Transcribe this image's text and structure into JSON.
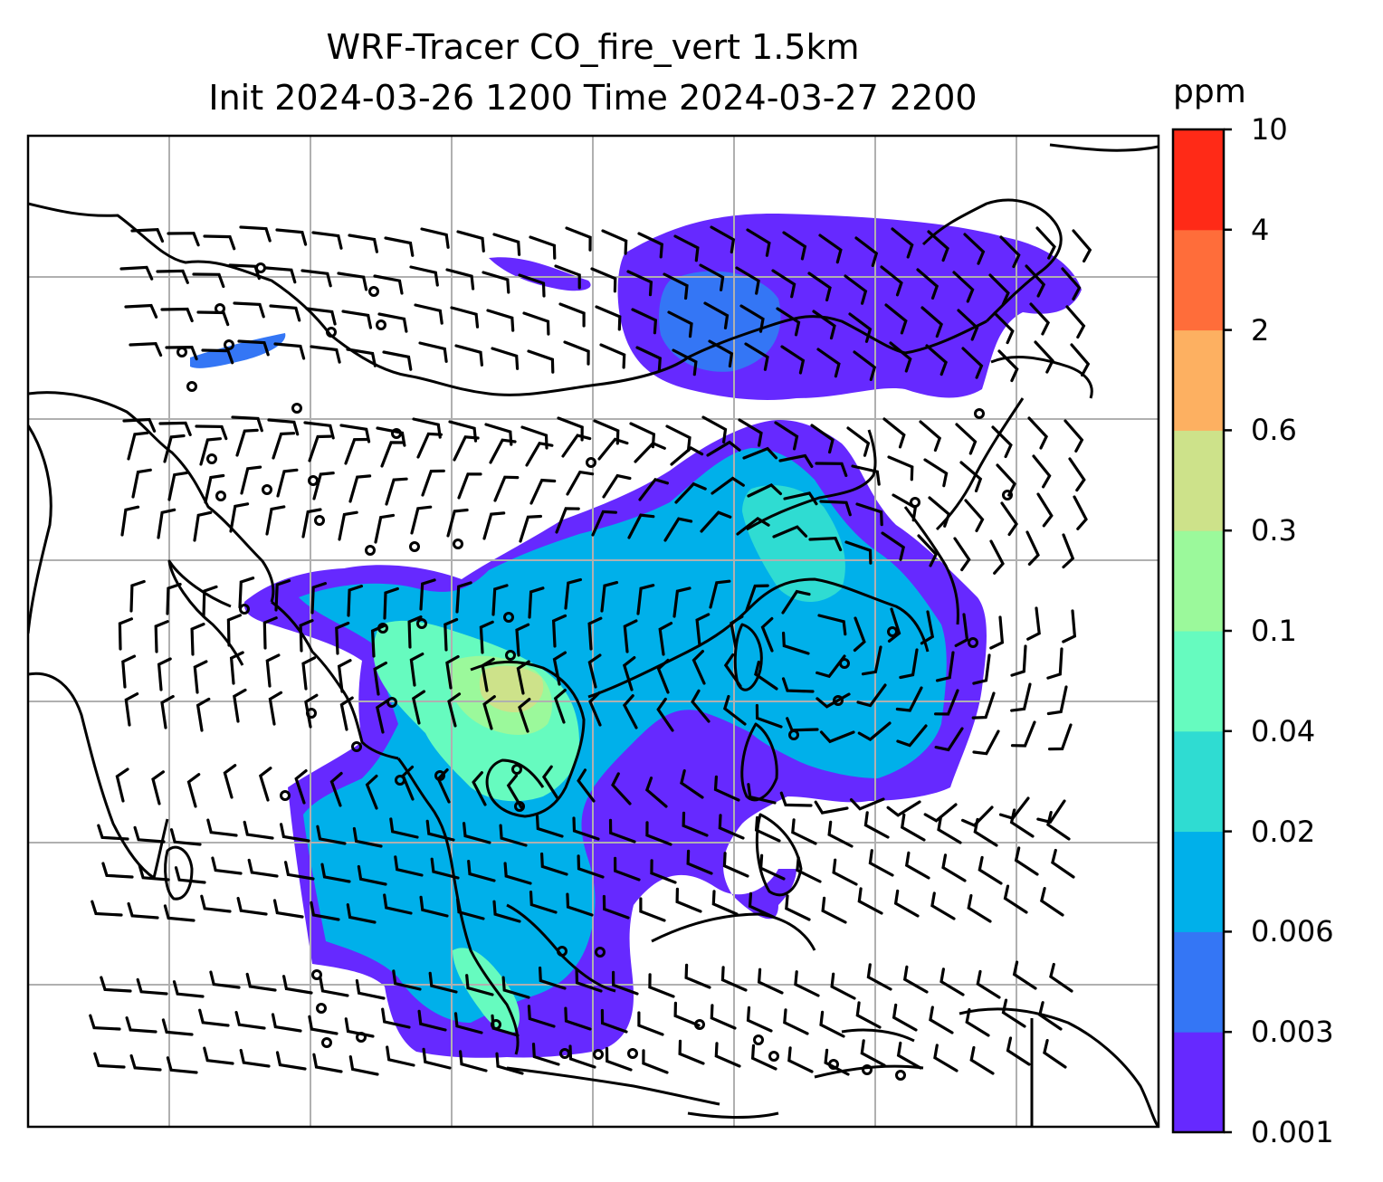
{
  "title": {
    "line1": "WRF-Tracer CO_fire_vert 1.5km",
    "line2": "Init 2024-03-26 1200 Time 2024-03-27 2200"
  },
  "colorbar": {
    "unit": "ppm",
    "ticks": [
      "0.001",
      "0.003",
      "0.006",
      "0.02",
      "0.04",
      "0.1",
      "0.3",
      "0.6",
      "2",
      "4",
      "10"
    ],
    "colors": [
      "#6629ff",
      "#3476f5",
      "#00b0ea",
      "#2fdcd2",
      "#66fbbf",
      "#9bf99b",
      "#cde28a",
      "#fdb061",
      "#ff6d3a",
      "#ff2a17"
    ]
  },
  "map": {
    "gridlines": true,
    "land_outline_color": "#000000",
    "grid_color": "#b0b0b0",
    "tracer_colors": {
      "low": "#6629ff",
      "low2": "#3476f5",
      "mid": "#00b0ea",
      "mid2": "#2fdcd2",
      "high": "#66fbbf",
      "high2": "#9bf99b",
      "peak": "#cde28a"
    }
  }
}
